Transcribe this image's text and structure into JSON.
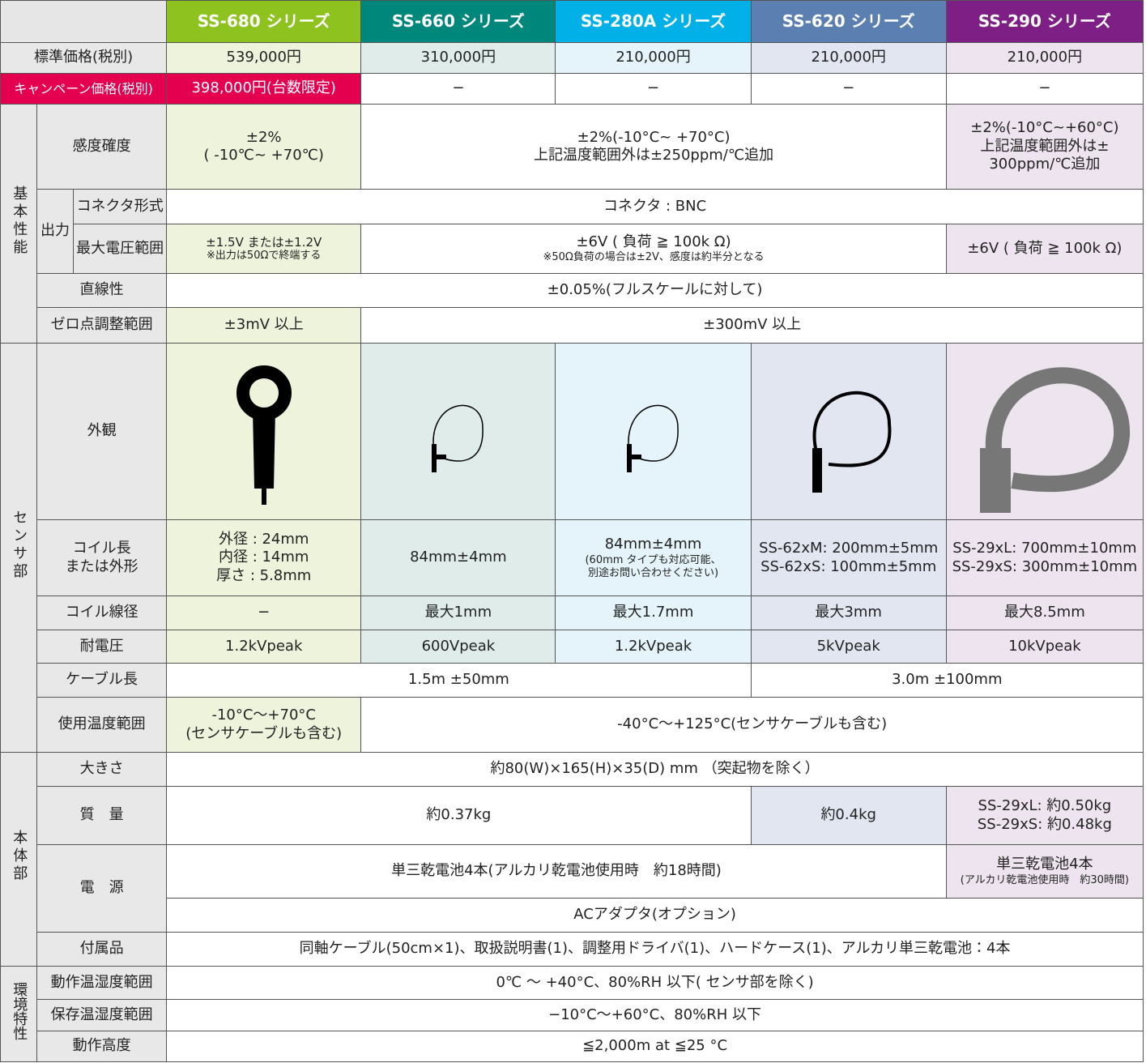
{
  "header": {
    "products": [
      "SS-680 シリーズ",
      "SS-660 シリーズ",
      "SS-280A シリーズ",
      "SS-620 シリーズ",
      "SS-290 シリーズ"
    ]
  },
  "price": {
    "label": "標準価格(税別)",
    "cells": [
      "539,000円",
      "310,000円",
      "210,000円",
      "210,000円",
      "210,000円"
    ]
  },
  "campaign": {
    "label": "キャンペーン価格(税別)",
    "cells": [
      "398,000円(台数限定)",
      "−",
      "−",
      "−",
      "−"
    ]
  },
  "groups": {
    "basic": "基本性能",
    "sensor": "センサ部",
    "body": "本体部",
    "env": "環境特性"
  },
  "output_label": "出力",
  "accuracy": {
    "label": "感度確度",
    "cells": [
      "±2%\n( -10℃~ +70℃)",
      "±2%(-10°C~ +70°C)\n上記温度範囲外は±250ppm/℃追加",
      "±2%(-10°C~+60°C)\n上記温度範囲外は±\n300ppm/℃追加"
    ]
  },
  "connector": {
    "label": "コネクタ形式",
    "cells": [
      "コネクタ : BNC"
    ]
  },
  "max_voltage": {
    "label": "最大電圧範囲",
    "cells": [
      "±1.5V または±1.2V",
      "±6V ( 負荷 ≧ 100k Ω)",
      "±6V ( 負荷 ≧ 100k Ω)"
    ],
    "notes": [
      "※出力は50Ωで終端する",
      "※50Ω負荷の場合は±2V、感度は約半分となる"
    ]
  },
  "linearity": {
    "label": "直線性",
    "cells": [
      "±0.05%(フルスケールに対して)"
    ]
  },
  "zero_adjust": {
    "label": "ゼロ点調整範囲",
    "cells": [
      "±3mV 以上",
      "±300mV 以上"
    ]
  },
  "appearance": {
    "label": "外観"
  },
  "coil_length": {
    "label": "コイル長\nまたは外形",
    "cells": [
      "外径 : 24mm\n内径 : 14mm\n厚さ : 5.8mm",
      "84mm±4mm",
      "84mm±4mm",
      "SS-62xM: 200mm±5mm\nSS-62xS: 100mm±5mm",
      "SS-29xL: 700mm±10mm\nSS-29xS: 300mm±10mm"
    ],
    "note": "(60mm タイプも対応可能、\n別途お問い合わせください)"
  },
  "wire_diameter": {
    "label": "コイル線径",
    "cells": [
      "−",
      "最大1mm",
      "最大1.7mm",
      "最大3mm",
      "最大8.5mm"
    ]
  },
  "withstand": {
    "label": "耐電圧",
    "cells": [
      "1.2kVpeak",
      "600Vpeak",
      "1.2kVpeak",
      "5kVpeak",
      "10kVpeak"
    ]
  },
  "cable_length": {
    "label": "ケーブル長",
    "cells": [
      "1.5m ±50mm",
      "3.0m ±100mm"
    ]
  },
  "temp_range": {
    "label": "使用温度範囲",
    "cells": [
      "-10°C～+70°C\n(センサケーブルも含む)",
      "-40°C～+125°C(センサケーブルも含む)"
    ]
  },
  "size": {
    "label": "大きさ",
    "cells": [
      "約80(W)×165(H)×35(D) mm （突起物を除く）"
    ]
  },
  "mass": {
    "label": "質　量",
    "cells": [
      "約0.37kg",
      "約0.4kg",
      "SS-29xL: 約0.50kg\nSS-29xS: 約0.48kg"
    ]
  },
  "power": {
    "label": "電　源",
    "cells": [
      "単三乾電池4本(アルカリ乾電池使用時　約18時間)",
      "単三乾電池4本",
      "ACアダプタ(オプション)"
    ],
    "note": "(アルカリ乾電池使用時　約30時間)"
  },
  "accessories": {
    "label": "付属品",
    "cells": [
      "同軸ケーブル(50cm×1)、取扱説明書(1)、調整用ドライバ(1)、ハードケース(1)、アルカリ単三乾電池：4本"
    ]
  },
  "op_env": {
    "label": "動作温湿度範囲",
    "cells": [
      "0℃ ～ +40°C、80%RH 以下( センサ部を除く)"
    ]
  },
  "storage_env": {
    "label": "保存温湿度範囲",
    "cells": [
      "−10°C～+60°C、80%RH 以下"
    ]
  },
  "altitude": {
    "label": "動作高度",
    "cells": [
      "≦2,000m at ≦25 °C"
    ]
  }
}
